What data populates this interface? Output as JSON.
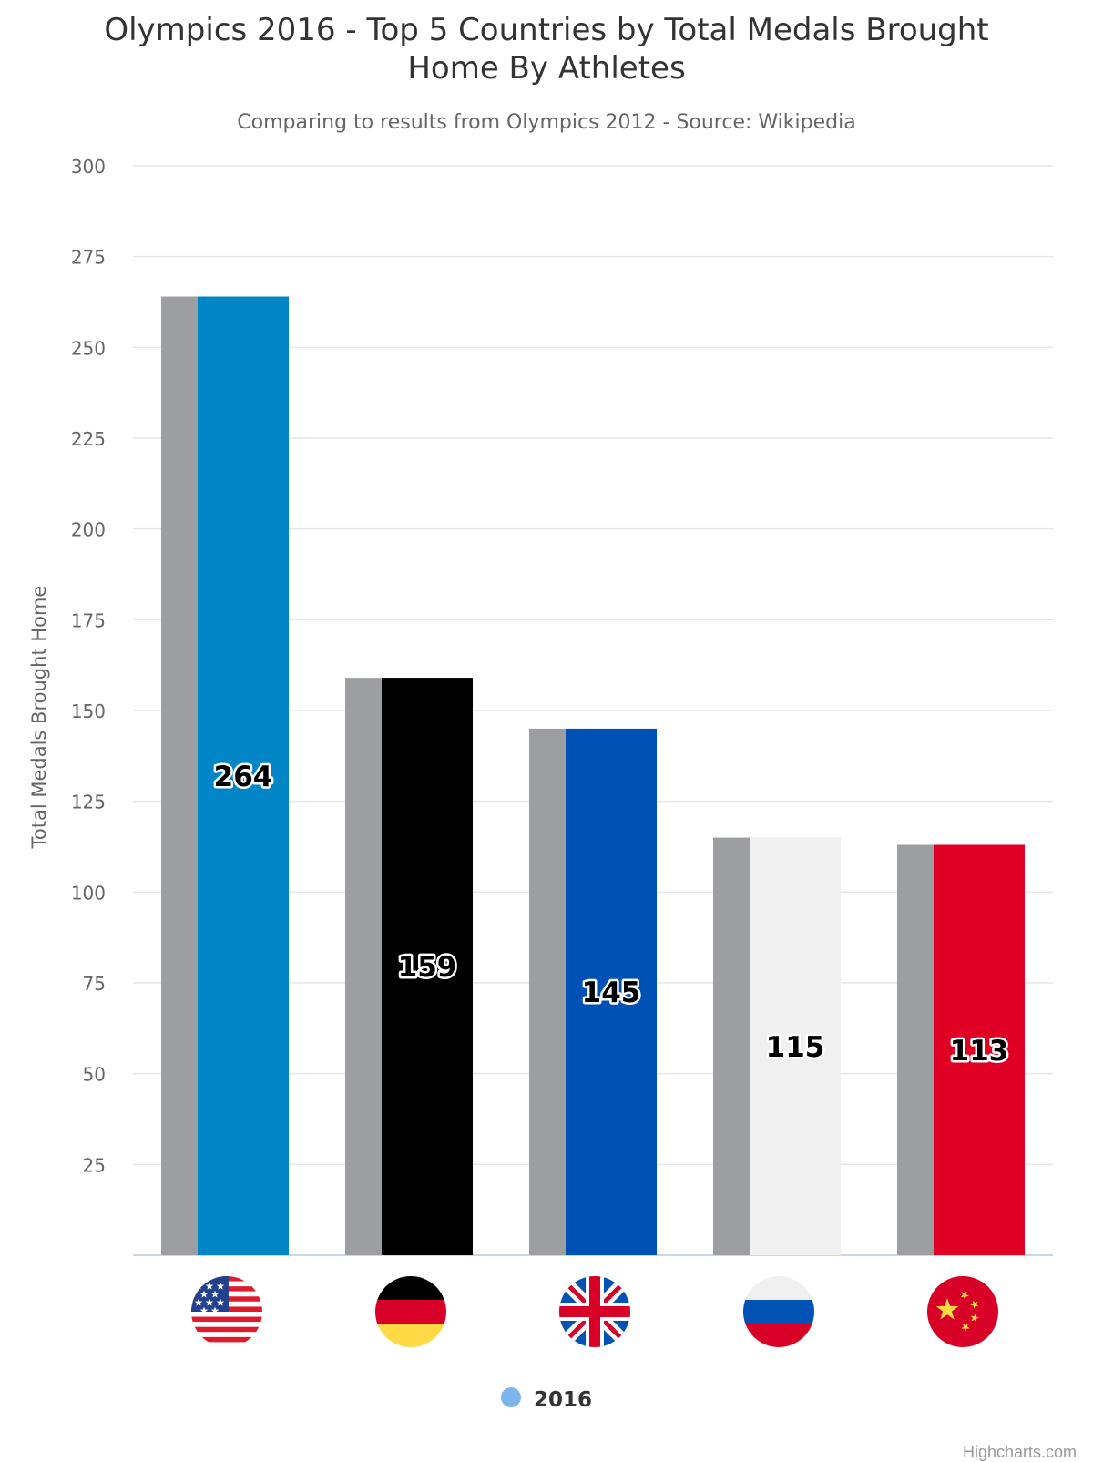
{
  "chart_data": {
    "type": "bar",
    "title": "Olympics 2016 - Top 5 Countries by Total Medals Brought Home By Athletes",
    "subtitle": "Comparing to results from Olympics 2012 - Source: Wikipedia",
    "ylabel": "Total Medals Brought Home",
    "ylim": [
      0,
      300
    ],
    "yticks": [
      25,
      50,
      75,
      100,
      125,
      150,
      175,
      200,
      225,
      250,
      275,
      300
    ],
    "grid": true,
    "legend_position": "bottom",
    "categories": [
      {
        "flag": "usa-flag-icon"
      },
      {
        "flag": "germany-flag-icon"
      },
      {
        "flag": "uk-flag-icon"
      },
      {
        "flag": "russia-flag-icon"
      },
      {
        "flag": "china-flag-icon"
      }
    ],
    "series": [
      {
        "values": [
          264,
          159,
          145,
          115,
          113
        ],
        "color": "#9d9ea2"
      },
      {
        "name": "2016",
        "values": [
          264,
          159,
          145,
          115,
          113
        ],
        "colors": [
          "#0085c7",
          "#000000",
          "#0051b5",
          "#f0f0f0",
          "#df0024"
        ],
        "labels": [
          "264",
          "159",
          "145",
          "115",
          "113"
        ]
      }
    ],
    "legend_color": "#7cb5ec",
    "credits": "Highcharts.com"
  }
}
